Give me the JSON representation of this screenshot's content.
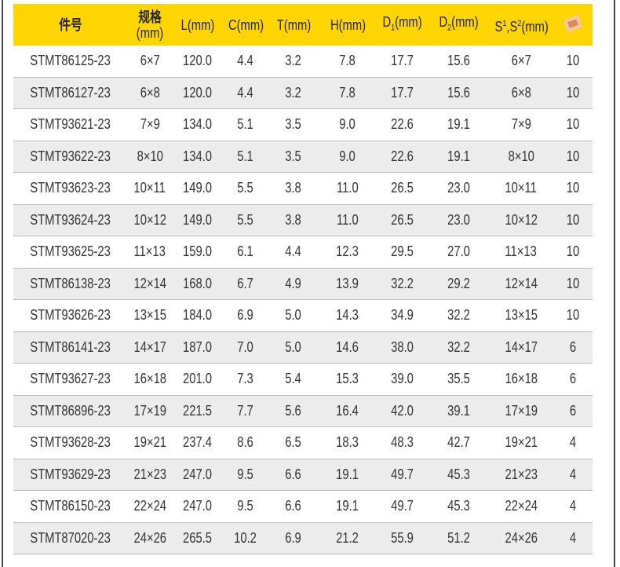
{
  "header": {
    "part": "件号",
    "spec_top": "规格",
    "spec_bottom": "(mm)",
    "L": "L(mm)",
    "C": "C(mm)",
    "T": "T(mm)",
    "H": "H(mm)",
    "D1": "D",
    "D1_sub": "1",
    "D1_unit": "(mm)",
    "D2": "D",
    "D2_sub": "2",
    "D2_unit": "(mm)",
    "S_a": "S",
    "S_a_sup": "1",
    "S_b": ",S",
    "S_b_sup": "2",
    "S_unit": "(mm)",
    "qty_icon": "box-icon"
  },
  "colors": {
    "header_bg": "#ffd500",
    "alt_row": "#ececec"
  },
  "rows": [
    [
      "STMT86125-23",
      "6×7",
      "120.0",
      "4.4",
      "3.2",
      "7.8",
      "17.7",
      "15.6",
      "6×7",
      "10"
    ],
    [
      "STMT86127-23",
      "6×8",
      "120.0",
      "4.4",
      "3.2",
      "7.8",
      "17.7",
      "15.6",
      "6×8",
      "10"
    ],
    [
      "STMT93621-23",
      "7×9",
      "134.0",
      "5.1",
      "3.5",
      "9.0",
      "22.6",
      "19.1",
      "7×9",
      "10"
    ],
    [
      "STMT93622-23",
      "8×10",
      "134.0",
      "5.1",
      "3.5",
      "9.0",
      "22.6",
      "19.1",
      "8×10",
      "10"
    ],
    [
      "STMT93623-23",
      "10×11",
      "149.0",
      "5.5",
      "3.8",
      "11.0",
      "26.5",
      "23.0",
      "10×11",
      "10"
    ],
    [
      "STMT93624-23",
      "10×12",
      "149.0",
      "5.5",
      "3.8",
      "11.0",
      "26.5",
      "23.0",
      "10×12",
      "10"
    ],
    [
      "STMT93625-23",
      "11×13",
      "159.0",
      "6.1",
      "4.4",
      "12.3",
      "29.5",
      "27.0",
      "11×13",
      "10"
    ],
    [
      "STMT86138-23",
      "12×14",
      "168.0",
      "6.7",
      "4.9",
      "13.9",
      "32.2",
      "29.2",
      "12×14",
      "10"
    ],
    [
      "STMT93626-23",
      "13×15",
      "184.0",
      "6.9",
      "5.0",
      "14.3",
      "34.9",
      "32.2",
      "13×15",
      "10"
    ],
    [
      "STMT86141-23",
      "14×17",
      "187.0",
      "7.0",
      "5.0",
      "14.6",
      "38.0",
      "32.2",
      "14×17",
      "6"
    ],
    [
      "STMT93627-23",
      "16×18",
      "201.0",
      "7.3",
      "5.4",
      "15.3",
      "39.0",
      "35.5",
      "16×18",
      "6"
    ],
    [
      "STMT86896-23",
      "17×19",
      "221.5",
      "7.7",
      "5.6",
      "16.4",
      "42.0",
      "39.1",
      "17×19",
      "6"
    ],
    [
      "STMT93628-23",
      "19×21",
      "237.4",
      "8.6",
      "6.5",
      "18.3",
      "48.3",
      "42.7",
      "19×21",
      "4"
    ],
    [
      "STMT93629-23",
      "21×23",
      "247.0",
      "9.5",
      "6.6",
      "19.1",
      "49.7",
      "45.3",
      "21×23",
      "4"
    ],
    [
      "STMT86150-23",
      "22×24",
      "247.0",
      "9.5",
      "6.6",
      "19.1",
      "49.7",
      "45.3",
      "22×24",
      "4"
    ],
    [
      "STMT87020-23",
      "24×26",
      "265.5",
      "10.2",
      "6.9",
      "21.2",
      "55.9",
      "51.2",
      "24×26",
      "4"
    ]
  ]
}
